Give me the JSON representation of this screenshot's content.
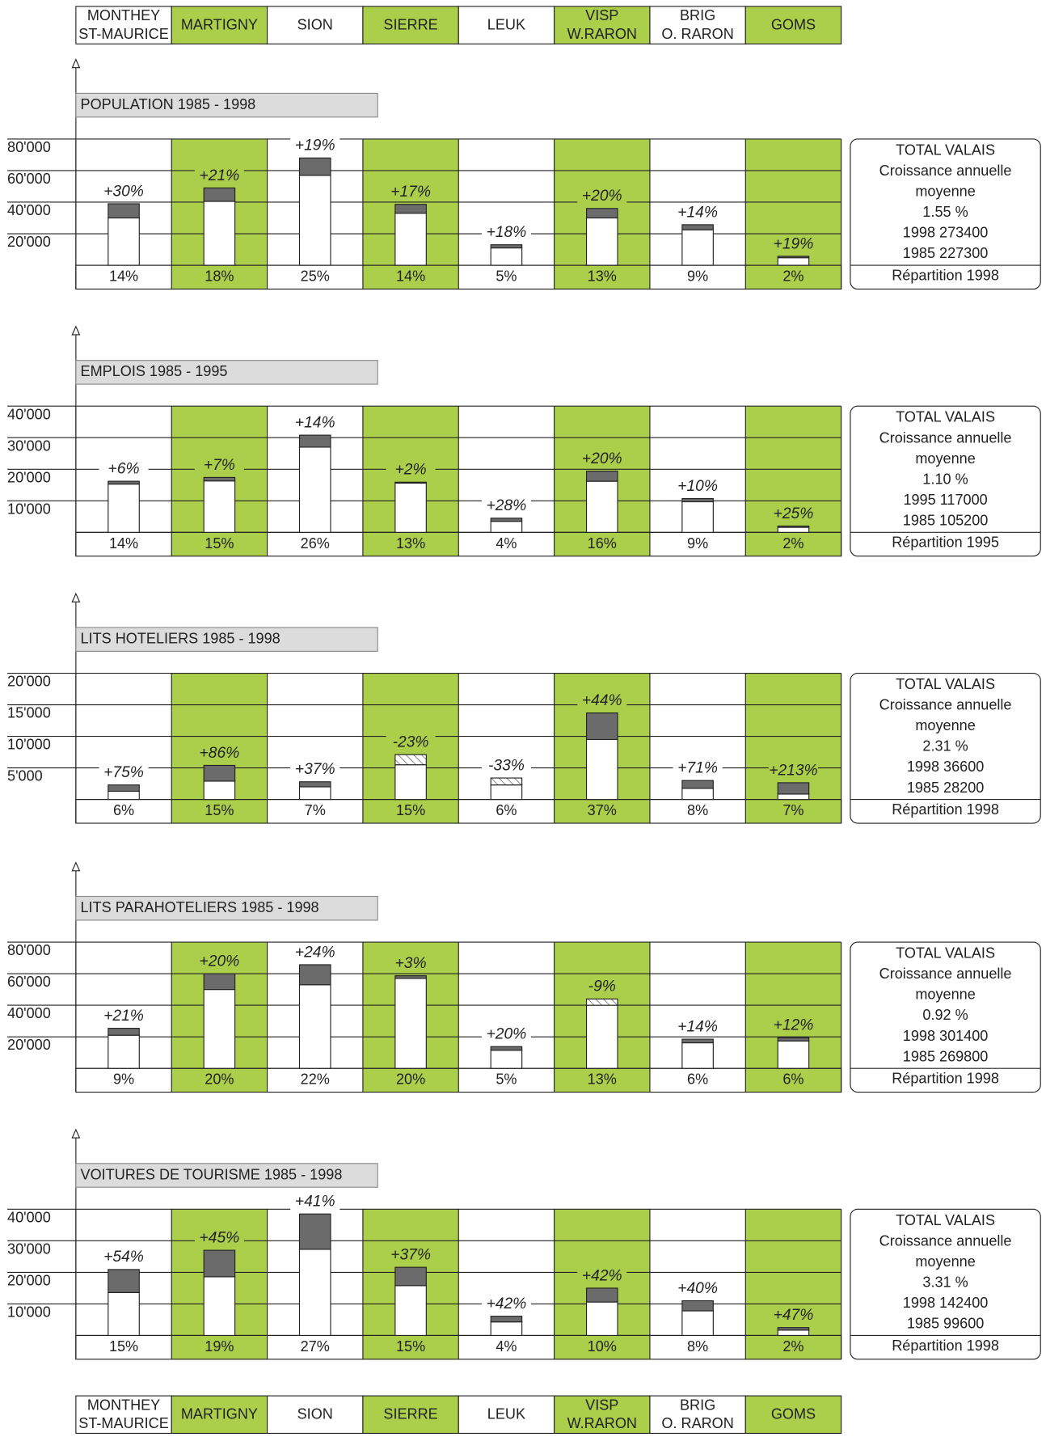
{
  "regions": {
    "labels": [
      [
        "MONTHEY",
        "ST-MAURICE"
      ],
      [
        "MARTIGNY"
      ],
      [
        "SION"
      ],
      [
        "SIERRE"
      ],
      [
        "LEUK"
      ],
      [
        "VISP",
        "W.RARON"
      ],
      [
        "BRIG",
        "O. RARON"
      ],
      [
        "GOMS"
      ]
    ],
    "colors": [
      "#ffffff",
      "#abcf4b",
      "#ffffff",
      "#abcf4b",
      "#ffffff",
      "#abcf4b",
      "#ffffff",
      "#abcf4b"
    ]
  },
  "chart_data": [
    {
      "type": "bar",
      "title": "POPULATION 1985 - 1998",
      "ylim": [
        0,
        80000
      ],
      "yticks": [
        {
          "value": 20000,
          "label": "20'000"
        },
        {
          "value": 40000,
          "label": "40'000"
        },
        {
          "value": 60000,
          "label": "60'000"
        },
        {
          "value": 80000,
          "label": "80'000"
        }
      ],
      "series": [
        {
          "color": "#ffffff",
          "values": [
            30000,
            40500,
            57000,
            33000,
            11000,
            30000,
            22500,
            4800
          ]
        },
        {
          "color": "#6b6b6b",
          "values": [
            39000,
            49000,
            68000,
            38600,
            13000,
            36000,
            25700,
            5700
          ]
        }
      ],
      "growth": {
        "values": [
          30,
          21,
          19,
          17,
          18,
          20,
          14,
          19
        ],
        "value_labels": [
          "+30%",
          "+21%",
          "+19%",
          "+17%",
          "+18%",
          "+20%",
          "+14%",
          "+19%"
        ]
      },
      "shares": {
        "values": [
          14,
          18,
          25,
          14,
          5,
          13,
          9,
          2
        ],
        "value_labels": [
          "14%",
          "18%",
          "25%",
          "14%",
          "5%",
          "13%",
          "9%",
          "2%"
        ]
      },
      "total": {
        "lines": [
          "TOTAL VALAIS",
          "Croissance annuelle",
          "moyenne",
          "1.55 %",
          "1998  273400",
          "1985  227300"
        ],
        "distribution": "Répartition 1998"
      }
    },
    {
      "type": "bar",
      "title": "EMPLOIS 1985 - 1995",
      "ylim": [
        0,
        40000
      ],
      "yticks": [
        {
          "value": 10000,
          "label": "10'000"
        },
        {
          "value": 20000,
          "label": "20'000"
        },
        {
          "value": 30000,
          "label": "30'000"
        },
        {
          "value": 40000,
          "label": "40'000"
        }
      ],
      "series": [
        {
          "color": "#ffffff",
          "values": [
            15300,
            16300,
            27000,
            15600,
            3500,
            16200,
            9700,
            1600
          ]
        },
        {
          "color": "#6b6b6b",
          "values": [
            16200,
            17400,
            30800,
            15900,
            4500,
            19400,
            10700,
            2000
          ]
        }
      ],
      "growth": {
        "values": [
          6,
          7,
          14,
          2,
          28,
          20,
          10,
          25
        ],
        "value_labels": [
          "+6%",
          "+7%",
          "+14%",
          "+2%",
          "+28%",
          "+20%",
          "+10%",
          "+25%"
        ]
      },
      "shares": {
        "values": [
          14,
          15,
          26,
          13,
          4,
          16,
          9,
          2
        ],
        "value_labels": [
          "14%",
          "15%",
          "26%",
          "13%",
          "4%",
          "16%",
          "9%",
          "2%"
        ]
      },
      "total": {
        "lines": [
          "TOTAL VALAIS",
          "Croissance annuelle",
          "moyenne",
          "1.10 %",
          "1995  117000",
          "1985  105200"
        ],
        "distribution": "Répartition 1995"
      }
    },
    {
      "type": "bar",
      "title": "LITS HOTELIERS 1985 - 1998",
      "ylim": [
        0,
        20000
      ],
      "yticks": [
        {
          "value": 5000,
          "label": "5'000"
        },
        {
          "value": 10000,
          "label": "10'000"
        },
        {
          "value": 15000,
          "label": "15'000"
        },
        {
          "value": 20000,
          "label": "20'000"
        }
      ],
      "series": [
        {
          "color": "#ffffff",
          "values": [
            1300,
            2900,
            2000,
            7100,
            3400,
            9500,
            1750,
            850
          ]
        },
        {
          "color": "#6b6b6b",
          "values": [
            2300,
            5400,
            2800,
            5500,
            2300,
            13700,
            3000,
            2650
          ]
        }
      ],
      "growth": {
        "values": [
          75,
          86,
          37,
          -23,
          -33,
          44,
          71,
          213
        ],
        "value_labels": [
          "+75%",
          "+86%",
          "+37%",
          "-23%",
          "-33%",
          "+44%",
          "+71%",
          "+213%"
        ]
      },
      "shares": {
        "values": [
          6,
          15,
          7,
          15,
          6,
          37,
          8,
          7
        ],
        "value_labels": [
          "6%",
          "15%",
          "7%",
          "15%",
          "6%",
          "37%",
          "8%",
          "7%"
        ]
      },
      "total": {
        "lines": [
          "TOTAL VALAIS",
          "Croissance annuelle",
          "moyenne",
          "2.31 %",
          "1998  36600",
          "1985  28200"
        ],
        "distribution": "Répartition 1998"
      }
    },
    {
      "type": "bar",
      "title": "LITS PARAHOTELIERS 1985 - 1998",
      "ylim": [
        0,
        80000
      ],
      "yticks": [
        {
          "value": 20000,
          "label": "20'000"
        },
        {
          "value": 40000,
          "label": "40'000"
        },
        {
          "value": 60000,
          "label": "60'000"
        },
        {
          "value": 80000,
          "label": "80'000"
        }
      ],
      "series": [
        {
          "color": "#ffffff",
          "values": [
            21000,
            50000,
            53000,
            57000,
            11500,
            44000,
            16200,
            17400
          ]
        },
        {
          "color": "#6b6b6b",
          "values": [
            25400,
            60000,
            65700,
            58700,
            13800,
            40000,
            18500,
            19500
          ]
        }
      ],
      "growth": {
        "values": [
          21,
          20,
          24,
          3,
          20,
          -9,
          14,
          12
        ],
        "value_labels": [
          "+21%",
          "+20%",
          "+24%",
          "+3%",
          "+20%",
          "-9%",
          "+14%",
          "+12%"
        ]
      },
      "shares": {
        "values": [
          9,
          20,
          22,
          20,
          5,
          13,
          6,
          6
        ],
        "value_labels": [
          "9%",
          "20%",
          "22%",
          "20%",
          "5%",
          "13%",
          "6%",
          "6%"
        ]
      },
      "total": {
        "lines": [
          "TOTAL VALAIS",
          "Croissance annuelle",
          "moyenne",
          "0.92 %",
          "1998  301400",
          "1985  269800"
        ],
        "distribution": "Répartition 1998"
      }
    },
    {
      "type": "bar",
      "title": "VOITURES DE TOURISME 1985 - 1998",
      "ylim": [
        0,
        40000
      ],
      "yticks": [
        {
          "value": 10000,
          "label": "10'000"
        },
        {
          "value": 20000,
          "label": "20'000"
        },
        {
          "value": 30000,
          "label": "30'000"
        },
        {
          "value": 40000,
          "label": "40'000"
        }
      ],
      "series": [
        {
          "color": "#ffffff",
          "values": [
            13600,
            18600,
            27300,
            15800,
            4300,
            10600,
            7800,
            1700
          ]
        },
        {
          "color": "#6b6b6b",
          "values": [
            20900,
            27000,
            38500,
            21600,
            6100,
            15000,
            11000,
            2500
          ]
        }
      ],
      "growth": {
        "values": [
          54,
          45,
          41,
          37,
          42,
          42,
          40,
          47
        ],
        "value_labels": [
          "+54%",
          "+45%",
          "+41%",
          "+37%",
          "+42%",
          "+42%",
          "+40%",
          "+47%"
        ]
      },
      "shares": {
        "values": [
          15,
          19,
          27,
          15,
          4,
          10,
          8,
          2
        ],
        "value_labels": [
          "15%",
          "19%",
          "27%",
          "15%",
          "4%",
          "10%",
          "8%",
          "2%"
        ]
      },
      "total": {
        "lines": [
          "TOTAL VALAIS",
          "Croissance annuelle",
          "moyenne",
          "3.31 %",
          "1998  142400",
          "1985  99600"
        ],
        "distribution": "Répartition 1998"
      }
    }
  ]
}
